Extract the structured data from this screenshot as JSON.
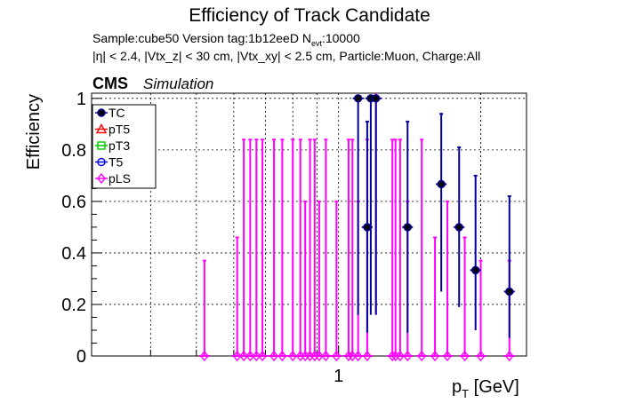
{
  "header": {
    "title": "Efficiency of Track Candidate",
    "line1": "Sample:cube50   Version tag:1b12eeD  N",
    "line1_sub": "evt",
    "line1_tail": ":10000",
    "line2": "|η| < 2.4, |Vtx_z| < 30 cm, |Vtx_xy| < 2.5 cm, Particle:Muon, Charge:All",
    "cms": "CMS",
    "simulation": "Simulation"
  },
  "chart_data": {
    "type": "scatter",
    "title": "Efficiency of Track Candidate",
    "xlabel": "p_T [GeV]",
    "ylabel": "Efficiency",
    "xscale": "log",
    "xlim": [
      0.3,
      2.5
    ],
    "ylim": [
      0,
      1.02
    ],
    "grid": true,
    "legend_position": "top-left",
    "xticks": [
      {
        "value": 1,
        "label": "1"
      }
    ],
    "yticks": [
      {
        "value": 0,
        "label": "0"
      },
      {
        "value": 0.2,
        "label": "0.2"
      },
      {
        "value": 0.4,
        "label": "0.4"
      },
      {
        "value": 0.6,
        "label": "0.6"
      },
      {
        "value": 0.8,
        "label": "0.8"
      },
      {
        "value": 1,
        "label": "1"
      }
    ],
    "series": [
      {
        "name": "TC",
        "color": "#000099",
        "marker": "circle-filled",
        "points": [
          {
            "x": 1.1,
            "y": 1.0,
            "lo": 0.16,
            "hi": 1.0
          },
          {
            "x": 1.15,
            "y": 0.5,
            "lo": 0.09,
            "hi": 0.91
          },
          {
            "x": 1.17,
            "y": 1.0,
            "lo": 0.16,
            "hi": 1.0
          },
          {
            "x": 1.2,
            "y": 1.0,
            "lo": 0.16,
            "hi": 1.0
          },
          {
            "x": 1.4,
            "y": 0.5,
            "lo": 0.09,
            "hi": 0.91
          },
          {
            "x": 1.65,
            "y": 0.667,
            "lo": 0.25,
            "hi": 0.94
          },
          {
            "x": 1.8,
            "y": 0.5,
            "lo": 0.19,
            "hi": 0.81
          },
          {
            "x": 1.95,
            "y": 0.333,
            "lo": 0.1,
            "hi": 0.7
          },
          {
            "x": 2.3,
            "y": 0.25,
            "lo": 0.07,
            "hi": 0.62
          }
        ]
      },
      {
        "name": "pT5",
        "color": "#ff0000",
        "marker": "triangle-open",
        "points": []
      },
      {
        "name": "pT3",
        "color": "#00cc00",
        "marker": "square-open",
        "points": []
      },
      {
        "name": "T5",
        "color": "#0000ff",
        "marker": "circle-open",
        "points": []
      },
      {
        "name": "pLS",
        "color": "#ff00ff",
        "marker": "diamond-open",
        "points": [
          {
            "x": 0.52,
            "y": 0.0,
            "lo": 0.0,
            "hi": 0.37
          },
          {
            "x": 0.61,
            "y": 0.0,
            "lo": 0.0,
            "hi": 0.46
          },
          {
            "x": 0.63,
            "y": 0.0,
            "lo": 0.0,
            "hi": 0.84
          },
          {
            "x": 0.65,
            "y": 0.0,
            "lo": 0.0,
            "hi": 0.84
          },
          {
            "x": 0.67,
            "y": 0.0,
            "lo": 0.0,
            "hi": 0.84
          },
          {
            "x": 0.69,
            "y": 0.0,
            "lo": 0.0,
            "hi": 0.84
          },
          {
            "x": 0.73,
            "y": 0.0,
            "lo": 0.0,
            "hi": 0.84
          },
          {
            "x": 0.76,
            "y": 0.0,
            "lo": 0.0,
            "hi": 0.84
          },
          {
            "x": 0.8,
            "y": 0.0,
            "lo": 0.0,
            "hi": 0.84
          },
          {
            "x": 0.83,
            "y": 0.0,
            "lo": 0.0,
            "hi": 0.84
          },
          {
            "x": 0.85,
            "y": 0.0,
            "lo": 0.0,
            "hi": 0.6
          },
          {
            "x": 0.87,
            "y": 0.0,
            "lo": 0.0,
            "hi": 0.84
          },
          {
            "x": 0.89,
            "y": 0.0,
            "lo": 0.0,
            "hi": 0.84
          },
          {
            "x": 0.91,
            "y": 0.0,
            "lo": 0.0,
            "hi": 0.6
          },
          {
            "x": 0.94,
            "y": 0.0,
            "lo": 0.0,
            "hi": 0.84
          },
          {
            "x": 0.99,
            "y": 0.0,
            "lo": 0.0,
            "hi": 0.6
          },
          {
            "x": 1.05,
            "y": 0.0,
            "lo": 0.0,
            "hi": 0.84
          },
          {
            "x": 1.07,
            "y": 0.0,
            "lo": 0.0,
            "hi": 0.84
          },
          {
            "x": 1.1,
            "y": 0.0,
            "lo": 0.0,
            "hi": 0.6
          },
          {
            "x": 1.15,
            "y": 0.0,
            "lo": 0.0,
            "hi": 0.84
          },
          {
            "x": 1.2,
            "y": 1.0,
            "lo": 0.16,
            "hi": 1.0
          },
          {
            "x": 1.3,
            "y": 0.0,
            "lo": 0.0,
            "hi": 0.84
          },
          {
            "x": 1.32,
            "y": 0.0,
            "lo": 0.0,
            "hi": 0.84
          },
          {
            "x": 1.35,
            "y": 0.0,
            "lo": 0.0,
            "hi": 0.84
          },
          {
            "x": 1.4,
            "y": 0.0,
            "lo": 0.0,
            "hi": 0.6
          },
          {
            "x": 1.5,
            "y": 0.0,
            "lo": 0.0,
            "hi": 0.84
          },
          {
            "x": 1.6,
            "y": 0.0,
            "lo": 0.0,
            "hi": 0.46
          },
          {
            "x": 1.7,
            "y": 0.0,
            "lo": 0.0,
            "hi": 0.6
          },
          {
            "x": 1.85,
            "y": 0.0,
            "lo": 0.0,
            "hi": 0.46
          },
          {
            "x": 2.0,
            "y": 0.0,
            "lo": 0.0,
            "hi": 0.37
          },
          {
            "x": 2.3,
            "y": 0.0,
            "lo": 0.0,
            "hi": 0.37
          }
        ]
      }
    ]
  }
}
